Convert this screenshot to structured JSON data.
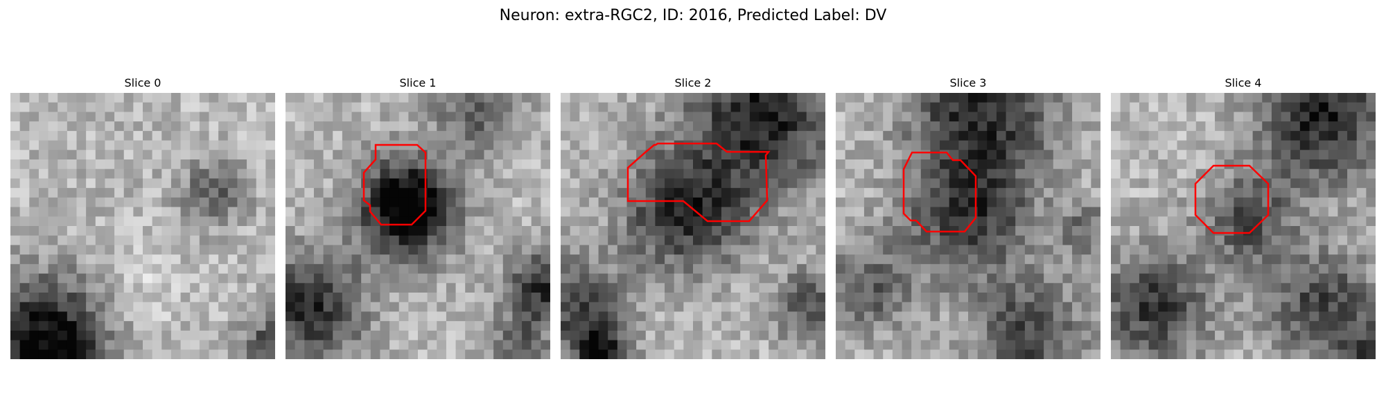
{
  "figure": {
    "title": "Neuron: extra-RGC2, ID: 2016, Predicted Label: DV"
  },
  "panels": [
    {
      "title": "Slice 0",
      "has_roi": false
    },
    {
      "title": "Slice 1",
      "has_roi": true
    },
    {
      "title": "Slice 2",
      "has_roi": true
    },
    {
      "title": "Slice 3",
      "has_roi": true
    },
    {
      "title": "Slice 4",
      "has_roi": true
    }
  ],
  "colors": {
    "roi_outline": "#ff0000",
    "background": "#ffffff"
  }
}
